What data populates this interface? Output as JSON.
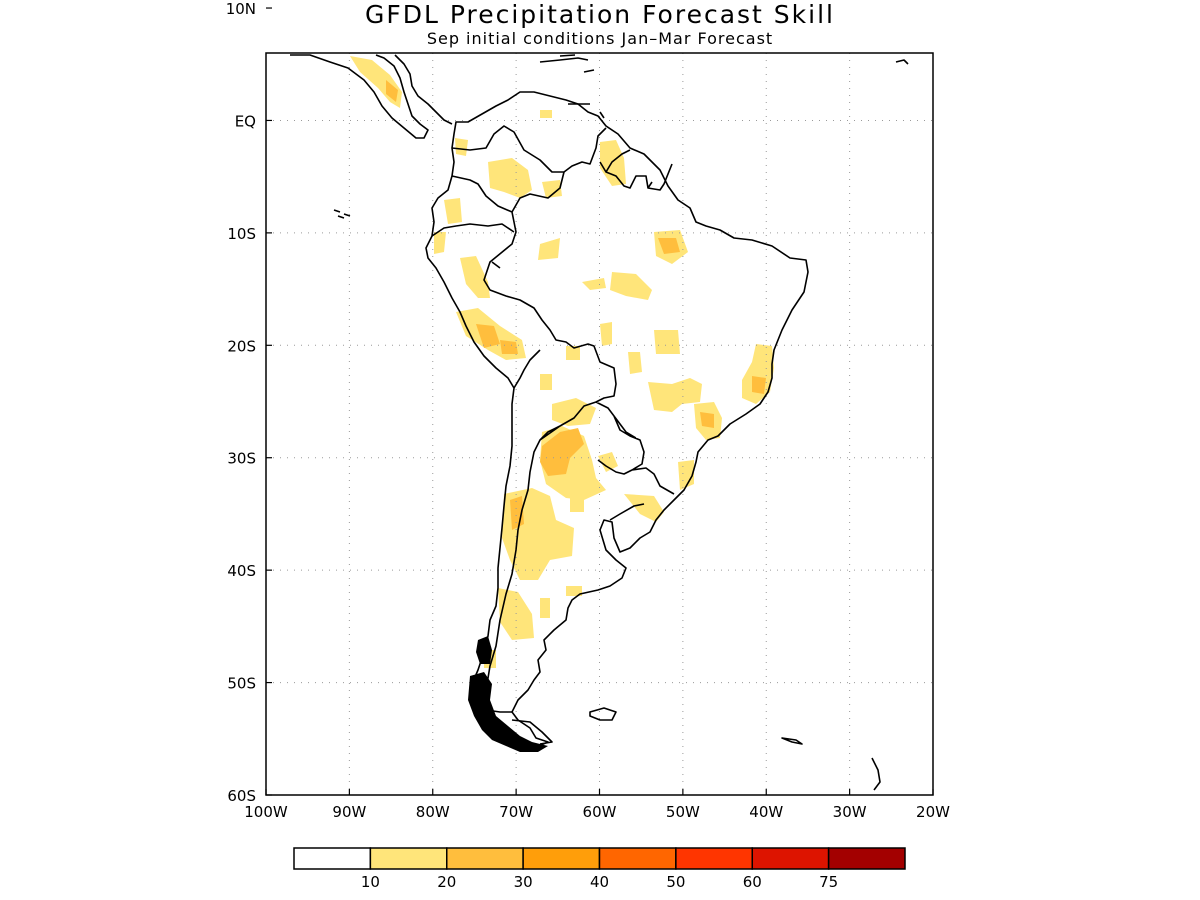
{
  "title": "GFDL Precipitation Forecast Skill",
  "subtitle": "Sep initial conditions  Jan–Mar Forecast",
  "map": {
    "lon_range": [
      -100,
      -20
    ],
    "lat_range": [
      -60,
      6
    ],
    "lat_ticks": [
      {
        "value": 10,
        "label": "10N"
      },
      {
        "value": 0,
        "label": "EQ"
      },
      {
        "value": -10,
        "label": "10S"
      },
      {
        "value": -20,
        "label": "20S"
      },
      {
        "value": -30,
        "label": "30S"
      },
      {
        "value": -40,
        "label": "40S"
      },
      {
        "value": -50,
        "label": "50S"
      },
      {
        "value": -60,
        "label": "60S"
      }
    ],
    "lon_ticks": [
      {
        "value": -100,
        "label": "100W"
      },
      {
        "value": -90,
        "label": "90W"
      },
      {
        "value": -80,
        "label": "80W"
      },
      {
        "value": -70,
        "label": "70W"
      },
      {
        "value": -60,
        "label": "60W"
      },
      {
        "value": -50,
        "label": "50W"
      },
      {
        "value": -40,
        "label": "40W"
      },
      {
        "value": -30,
        "label": "30W"
      },
      {
        "value": -20,
        "label": "20W"
      }
    ],
    "grid": "dotted"
  },
  "colorbar": {
    "colors": [
      "#ffffff",
      "#ffe57a",
      "#ffbe3d",
      "#ff9e0a",
      "#ff6600",
      "#ff3500",
      "#dd1400",
      "#a30000"
    ],
    "labels": [
      "10",
      "20",
      "30",
      "40",
      "50",
      "60",
      "75"
    ]
  }
}
